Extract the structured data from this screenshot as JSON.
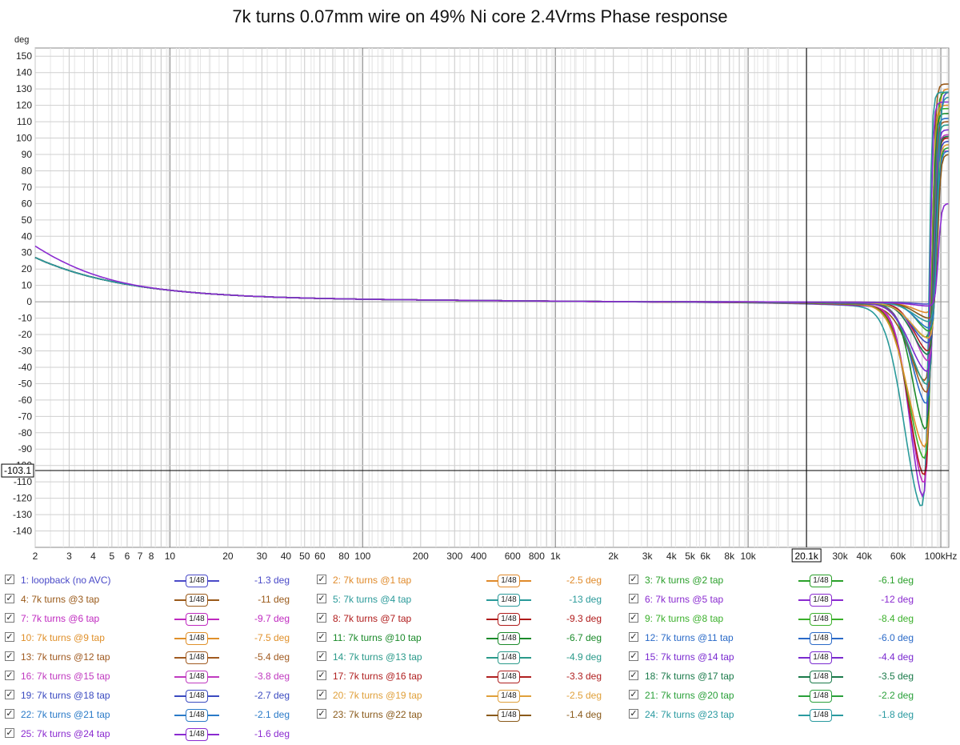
{
  "chart_data": {
    "type": "line",
    "title": "7k turns 0.07mm wire on 49% Ni core 2.4Vrms Phase response",
    "ylabel": "deg",
    "xlabel": "",
    "x_scale": "log",
    "xlim": [
      2,
      110000
    ],
    "ylim": [
      -150,
      155
    ],
    "grid": true,
    "legend_placement": "bottom",
    "y_ticks": [
      150,
      140,
      130,
      120,
      110,
      100,
      90,
      80,
      70,
      60,
      50,
      40,
      30,
      20,
      10,
      0,
      -10,
      -20,
      -30,
      -40,
      -50,
      -60,
      -70,
      -80,
      -90,
      -100,
      -110,
      -120,
      -130,
      -140
    ],
    "x_ticks": [
      {
        "v": 2,
        "label": "2"
      },
      {
        "v": 3,
        "label": "3"
      },
      {
        "v": 4,
        "label": "4"
      },
      {
        "v": 5,
        "label": "5"
      },
      {
        "v": 6,
        "label": "6"
      },
      {
        "v": 7,
        "label": "7"
      },
      {
        "v": 8,
        "label": "8"
      },
      {
        "v": 10,
        "label": "10"
      },
      {
        "v": 20,
        "label": "20"
      },
      {
        "v": 30,
        "label": "30"
      },
      {
        "v": 40,
        "label": "40"
      },
      {
        "v": 50,
        "label": "50"
      },
      {
        "v": 60,
        "label": "60"
      },
      {
        "v": 80,
        "label": "80"
      },
      {
        "v": 100,
        "label": "100"
      },
      {
        "v": 200,
        "label": "200"
      },
      {
        "v": 300,
        "label": "300"
      },
      {
        "v": 400,
        "label": "400"
      },
      {
        "v": 600,
        "label": "600"
      },
      {
        "v": 800,
        "label": "800"
      },
      {
        "v": 1000,
        "label": "1k"
      },
      {
        "v": 2000,
        "label": "2k"
      },
      {
        "v": 3000,
        "label": "3k"
      },
      {
        "v": 4000,
        "label": "4k"
      },
      {
        "v": 5000,
        "label": "5k"
      },
      {
        "v": 6000,
        "label": "6k"
      },
      {
        "v": 8000,
        "label": "8k"
      },
      {
        "v": 10000,
        "label": "10k"
      },
      {
        "v": 30000,
        "label": "30k"
      },
      {
        "v": 40000,
        "label": "40k"
      },
      {
        "v": 60000,
        "label": "60k"
      },
      {
        "v": 100000,
        "label": "100kHz"
      }
    ],
    "cursor": {
      "x": 20100,
      "x_label": "20.1k",
      "y": -103.1,
      "y_label": "-103.1"
    },
    "smoothing_label": "1/48",
    "series": [
      {
        "name": "1: loopback (no AVC)",
        "color": "#4a4ac8",
        "value_label": "-1.3 deg",
        "k": 0.13,
        "dip": -1,
        "peak": 128,
        "f0": 98000
      },
      {
        "name": "2: 7k turns @1 tap",
        "color": "#e08a2a",
        "value_label": "-2.5 deg",
        "k": 0.25,
        "dip": -6,
        "peak": 130,
        "f0": 96000
      },
      {
        "name": "3: 7k turns @2 tap",
        "color": "#2aa02a",
        "value_label": "-6.1 deg",
        "k": 0.61,
        "dip": -20,
        "peak": 128,
        "f0": 94000
      },
      {
        "name": "4: 7k turns @3 tap",
        "color": "#9a5a1a",
        "value_label": "-11 deg",
        "k": 1.1,
        "dip": -45,
        "peak": 133,
        "f0": 92000
      },
      {
        "name": "5: 7k turns @4 tap",
        "color": "#2a9a9a",
        "value_label": "-13 deg",
        "k": 1.3,
        "dip": -123,
        "peak": 128,
        "f0": 88000
      },
      {
        "name": "6: 7k turns @5 tap",
        "color": "#8a2ad0",
        "value_label": "-12 deg",
        "k": 1.2,
        "dip": -118,
        "peak": 122,
        "f0": 89000
      },
      {
        "name": "7: 7k turns @6 tap",
        "color": "#c02ac0",
        "value_label": "-9.7 deg",
        "k": 0.97,
        "dip": -110,
        "peak": 92,
        "f0": 90000
      },
      {
        "name": "8: 7k turns @7 tap",
        "color": "#b01a1a",
        "value_label": "-9.3 deg",
        "k": 0.93,
        "dip": -105,
        "peak": 100,
        "f0": 90500
      },
      {
        "name": "9: 7k turns @8 tap",
        "color": "#3ab02a",
        "value_label": "-8.4 deg",
        "k": 0.84,
        "dip": -95,
        "peak": 118,
        "f0": 91000
      },
      {
        "name": "10: 7k turns @9 tap",
        "color": "#e0902a",
        "value_label": "-7.5 deg",
        "k": 0.75,
        "dip": -88,
        "peak": 120,
        "f0": 91500
      },
      {
        "name": "11: 7k turns @10 tap",
        "color": "#1a8a2a",
        "value_label": "-6.7 deg",
        "k": 0.67,
        "dip": -78,
        "peak": 115,
        "f0": 92000
      },
      {
        "name": "12: 7k turns @11 tap",
        "color": "#2a6ac8",
        "value_label": "-6.0 deg",
        "k": 0.6,
        "dip": -62,
        "peak": 112,
        "f0": 93000
      },
      {
        "name": "13: 7k turns @12 tap",
        "color": "#a05a20",
        "value_label": "-5.4 deg",
        "k": 0.54,
        "dip": -55,
        "peak": 110,
        "f0": 93500
      },
      {
        "name": "14: 7k turns @13 tap",
        "color": "#2a9a8a",
        "value_label": "-4.9 deg",
        "k": 0.49,
        "dip": -50,
        "peak": 108,
        "f0": 94000
      },
      {
        "name": "15: 7k turns @14 tap",
        "color": "#7a2ad0",
        "value_label": "-4.4 deg",
        "k": 0.44,
        "dip": -42,
        "peak": 105,
        "f0": 94500
      },
      {
        "name": "16: 7k turns @15 tap",
        "color": "#c03ac0",
        "value_label": "-3.8 deg",
        "k": 0.38,
        "dip": -36,
        "peak": 102,
        "f0": 95000
      },
      {
        "name": "17: 7k turns @16 tap",
        "color": "#b02020",
        "value_label": "-3.3 deg",
        "k": 0.33,
        "dip": -30,
        "peak": 100,
        "f0": 95500
      },
      {
        "name": "18: 7k turns @17 tap",
        "color": "#1a7a4a",
        "value_label": "-3.5 deg",
        "k": 0.35,
        "dip": -32,
        "peak": 101,
        "f0": 95200
      },
      {
        "name": "19: 7k turns @18 tap",
        "color": "#3a4ac0",
        "value_label": "-2.7 deg",
        "k": 0.27,
        "dip": -25,
        "peak": 98,
        "f0": 96000
      },
      {
        "name": "20: 7k turns @19 tap",
        "color": "#e0a03a",
        "value_label": "-2.5 deg",
        "k": 0.25,
        "dip": -22,
        "peak": 96,
        "f0": 96500
      },
      {
        "name": "21: 7k turns @20 tap",
        "color": "#2aa03a",
        "value_label": "-2.2 deg",
        "k": 0.22,
        "dip": -18,
        "peak": 94,
        "f0": 97000
      },
      {
        "name": "22: 7k turns @21 tap",
        "color": "#2a7ac8",
        "value_label": "-2.1 deg",
        "k": 0.21,
        "dip": -16,
        "peak": 92,
        "f0": 97200
      },
      {
        "name": "23: 7k turns @22 tap",
        "color": "#8a5a1a",
        "value_label": "-1.4 deg",
        "k": 0.14,
        "dip": -10,
        "peak": 90,
        "f0": 97800
      },
      {
        "name": "24: 7k turns @23 tap",
        "color": "#2a9aa0",
        "value_label": "-1.8 deg",
        "k": 0.18,
        "dip": -12,
        "peak": 125,
        "f0": 97500
      },
      {
        "name": "25: 7k turns @24 tap",
        "color": "#8a2ad0",
        "value_label": "-1.6 deg",
        "k": 0.16,
        "dip": -2,
        "peak": 60,
        "f0": 98500
      }
    ]
  }
}
